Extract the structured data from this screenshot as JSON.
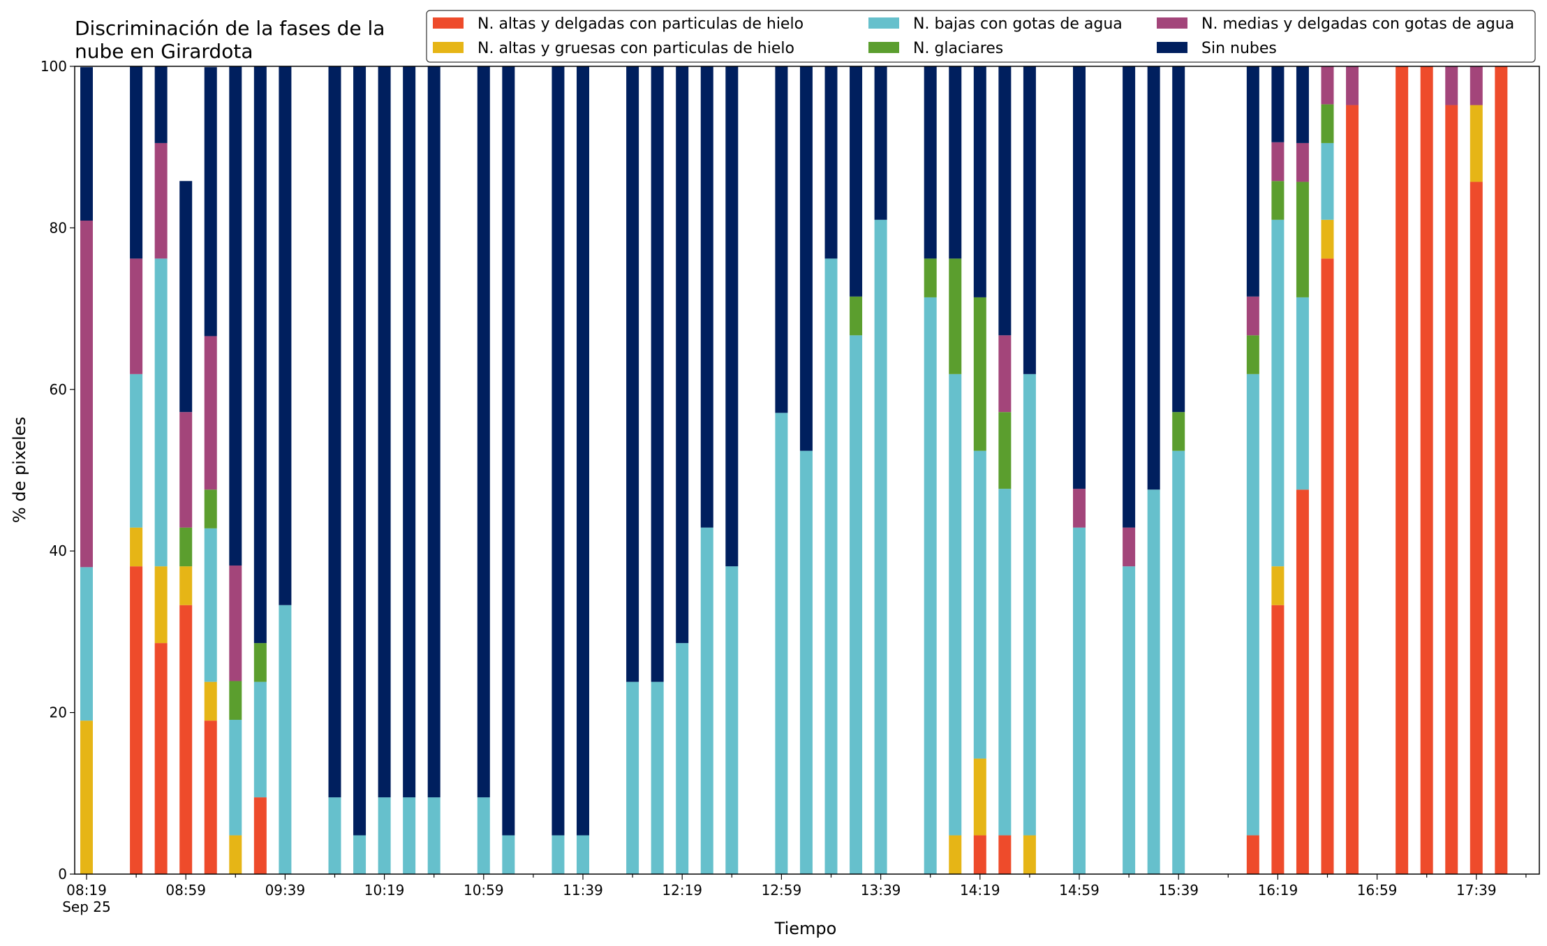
{
  "chart_data": {
    "type": "bar",
    "stacked": true,
    "title_lines": [
      "Discriminación de la fases de la",
      "nube en Girardota"
    ],
    "xlabel": "Tiempo",
    "ylabel": "% de pixeles",
    "ylim": [
      0,
      100
    ],
    "yticks": [
      "0",
      "20",
      "40",
      "60",
      "80",
      "100"
    ],
    "xtick_labels": [
      "08:19",
      "08:59",
      "09:39",
      "10:19",
      "10:59",
      "11:39",
      "12:19",
      "12:59",
      "13:39",
      "14:19",
      "14:59",
      "15:39",
      "16:19",
      "16:59",
      "17:39"
    ],
    "xtick_sublabel": "Sep 25",
    "time_start": "08:19",
    "time_end": "17:59",
    "bar_interval_minutes": 10,
    "grid": false,
    "legend_position": "top, across upper right",
    "series": [
      {
        "name": "N. altas y delgadas con particulas de hielo",
        "color": "#ee4b2b",
        "values": [
          0,
          0,
          38.1,
          28.6,
          33.3,
          19.0,
          0,
          9.5,
          0,
          0,
          0,
          0,
          0,
          0,
          0,
          0,
          0,
          0,
          0,
          0,
          0,
          0,
          0,
          0,
          0,
          0,
          0,
          0,
          0,
          0,
          0,
          0,
          0,
          0,
          0,
          0,
          4.8,
          4.8,
          0,
          0,
          0,
          0,
          0,
          0,
          0,
          0,
          0,
          4.8,
          33.3,
          47.6,
          76.2,
          95.2,
          0,
          100,
          100,
          95.2,
          85.7,
          100
        ]
      },
      {
        "name": "N. altas y gruesas con particulas de hielo",
        "color": "#e6b516",
        "values": [
          19.0,
          0,
          4.8,
          9.5,
          4.8,
          4.8,
          4.8,
          0,
          0,
          0,
          0,
          0,
          0,
          0,
          0,
          0,
          0,
          0,
          0,
          0,
          0,
          0,
          0,
          0,
          0,
          0,
          0,
          0,
          0,
          0,
          0,
          0,
          0,
          0,
          0,
          4.8,
          9.5,
          0,
          4.8,
          0,
          0,
          0,
          0,
          0,
          0,
          0,
          0,
          0,
          4.8,
          0,
          4.8,
          0,
          0,
          0,
          0,
          0,
          9.5,
          0
        ]
      },
      {
        "name": "N. bajas con gotas de agua",
        "color": "#66c0cc",
        "values": [
          19.0,
          0,
          19.0,
          38.1,
          0,
          19.0,
          14.3,
          14.3,
          33.3,
          0,
          9.5,
          4.8,
          9.5,
          9.5,
          9.5,
          0,
          9.5,
          4.8,
          0,
          4.8,
          4.8,
          0,
          23.8,
          23.8,
          28.6,
          42.9,
          38.1,
          0,
          57.1,
          52.4,
          76.2,
          66.7,
          81.0,
          0,
          71.4,
          57.1,
          38.1,
          42.9,
          57.1,
          0,
          42.9,
          0,
          38.1,
          47.6,
          52.4,
          0,
          0,
          57.1,
          42.9,
          23.8,
          9.5,
          0,
          0,
          0,
          0,
          0,
          0,
          0
        ]
      },
      {
        "name": "N. glaciares",
        "color": "#5b9e2e",
        "values": [
          0,
          0,
          0,
          0,
          4.8,
          4.8,
          4.8,
          4.8,
          0,
          0,
          0,
          0,
          0,
          0,
          0,
          0,
          0,
          0,
          0,
          0,
          0,
          0,
          0,
          0,
          0,
          0,
          0,
          0,
          0,
          0,
          0,
          4.8,
          0,
          0,
          4.8,
          14.3,
          19.0,
          9.5,
          0,
          0,
          0,
          0,
          0,
          0,
          4.8,
          0,
          0,
          4.8,
          4.8,
          14.3,
          4.8,
          0,
          0,
          0,
          0,
          0,
          0,
          0
        ]
      },
      {
        "name": "N. medias y delgadas con gotas de agua",
        "color": "#a3457a",
        "values": [
          42.9,
          0,
          14.3,
          14.3,
          14.3,
          19.0,
          14.3,
          0,
          0,
          0,
          0,
          0,
          0,
          0,
          0,
          0,
          0,
          0,
          0,
          0,
          0,
          0,
          0,
          0,
          0,
          0,
          0,
          0,
          0,
          0,
          0,
          0,
          0,
          0,
          0,
          0,
          0,
          9.5,
          0,
          0,
          4.8,
          0,
          4.8,
          0,
          0,
          0,
          0,
          4.8,
          4.8,
          4.8,
          4.8,
          4.8,
          0,
          0,
          0,
          4.8,
          4.8,
          0
        ]
      },
      {
        "name": "Sin nubes",
        "color": "#001f5e",
        "values": [
          19.0,
          0,
          23.8,
          9.5,
          28.6,
          33.3,
          61.9,
          71.4,
          66.7,
          0,
          90.5,
          95.2,
          90.5,
          90.5,
          90.5,
          0,
          90.5,
          95.2,
          0,
          95.2,
          95.2,
          0,
          76.2,
          76.2,
          71.4,
          57.1,
          61.9,
          0,
          42.9,
          47.6,
          23.8,
          28.6,
          19.0,
          0,
          23.8,
          23.8,
          28.6,
          33.3,
          42.9,
          0,
          52.4,
          0,
          57.1,
          52.4,
          42.9,
          0,
          0,
          28.6,
          9.5,
          9.5,
          0,
          0,
          0,
          0,
          0,
          0,
          0,
          0
        ]
      }
    ]
  }
}
